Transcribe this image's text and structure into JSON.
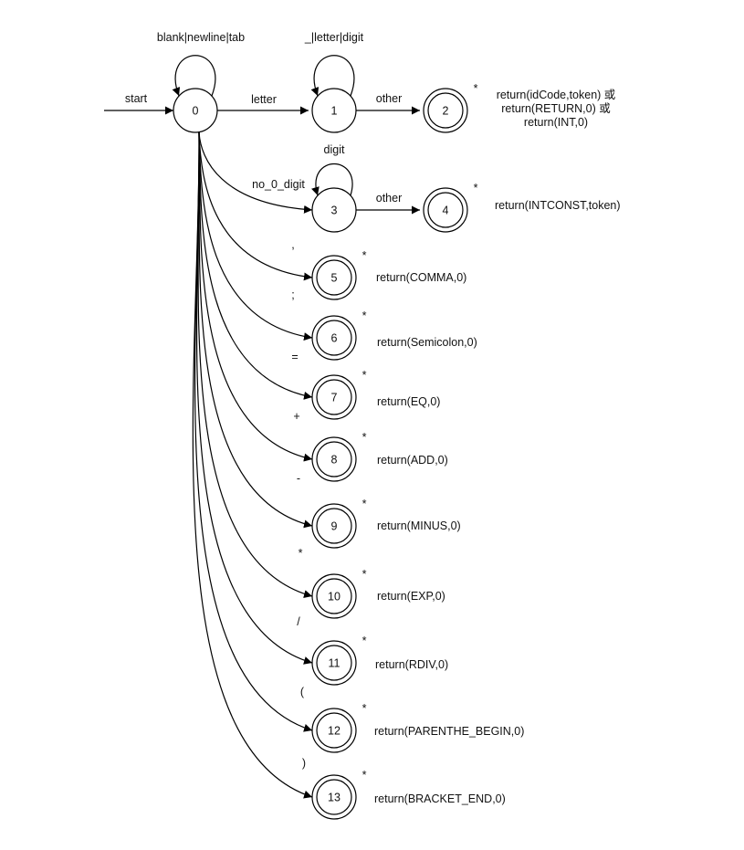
{
  "diagram": {
    "start_label": "start",
    "states": [
      {
        "id": "0",
        "label": "0",
        "accepting": false,
        "star": ""
      },
      {
        "id": "1",
        "label": "1",
        "accepting": false,
        "star": ""
      },
      {
        "id": "2",
        "label": "2",
        "accepting": true,
        "star": "*"
      },
      {
        "id": "3",
        "label": "3",
        "accepting": false,
        "star": ""
      },
      {
        "id": "4",
        "label": "4",
        "accepting": true,
        "star": "*"
      },
      {
        "id": "5",
        "label": "5",
        "accepting": true,
        "star": "*"
      },
      {
        "id": "6",
        "label": "6",
        "accepting": true,
        "star": "*"
      },
      {
        "id": "7",
        "label": "7",
        "accepting": true,
        "star": "*"
      },
      {
        "id": "8",
        "label": "8",
        "accepting": true,
        "star": "*"
      },
      {
        "id": "9",
        "label": "9",
        "accepting": true,
        "star": "*"
      },
      {
        "id": "10",
        "label": "10",
        "accepting": true,
        "star": "*"
      },
      {
        "id": "11",
        "label": "11",
        "accepting": true,
        "star": "*"
      },
      {
        "id": "12",
        "label": "12",
        "accepting": true,
        "star": "*"
      },
      {
        "id": "13",
        "label": "13",
        "accepting": true,
        "star": "*"
      }
    ],
    "transitions": [
      {
        "from": "0",
        "to": "0",
        "label": "blank|newline|tab"
      },
      {
        "from": "0",
        "to": "1",
        "label": "letter"
      },
      {
        "from": "1",
        "to": "1",
        "label": "_|letter|digit"
      },
      {
        "from": "1",
        "to": "2",
        "label": "other"
      },
      {
        "from": "0",
        "to": "3",
        "label": "no_0_digit"
      },
      {
        "from": "3",
        "to": "3",
        "label": "digit"
      },
      {
        "from": "3",
        "to": "4",
        "label": "other"
      },
      {
        "from": "0",
        "to": "5",
        "label": ","
      },
      {
        "from": "0",
        "to": "6",
        "label": ";"
      },
      {
        "from": "0",
        "to": "7",
        "label": "="
      },
      {
        "from": "0",
        "to": "8",
        "label": "+"
      },
      {
        "from": "0",
        "to": "9",
        "label": "-"
      },
      {
        "from": "0",
        "to": "10",
        "label": "*"
      },
      {
        "from": "0",
        "to": "11",
        "label": "/"
      },
      {
        "from": "0",
        "to": "12",
        "label": "("
      },
      {
        "from": "0",
        "to": "13",
        "label": ")"
      }
    ],
    "actions": [
      {
        "state": "2",
        "lines": [
          "return(idCode,token) 或",
          "return(RETURN,0) 或",
          "return(INT,0)"
        ]
      },
      {
        "state": "4",
        "lines": [
          "return(INTCONST,token)"
        ]
      },
      {
        "state": "5",
        "lines": [
          "return(COMMA,0)"
        ]
      },
      {
        "state": "6",
        "lines": [
          "return(Semicolon,0)"
        ]
      },
      {
        "state": "7",
        "lines": [
          "return(EQ,0)"
        ]
      },
      {
        "state": "8",
        "lines": [
          "return(ADD,0)"
        ]
      },
      {
        "state": "9",
        "lines": [
          "return(MINUS,0)"
        ]
      },
      {
        "state": "10",
        "lines": [
          "return(EXP,0)"
        ]
      },
      {
        "state": "11",
        "lines": [
          "return(RDIV,0)"
        ]
      },
      {
        "state": "12",
        "lines": [
          "return(PARENTHE_BEGIN,0)"
        ]
      },
      {
        "state": "13",
        "lines": [
          "return(BRACKET_END,0)"
        ]
      }
    ]
  }
}
